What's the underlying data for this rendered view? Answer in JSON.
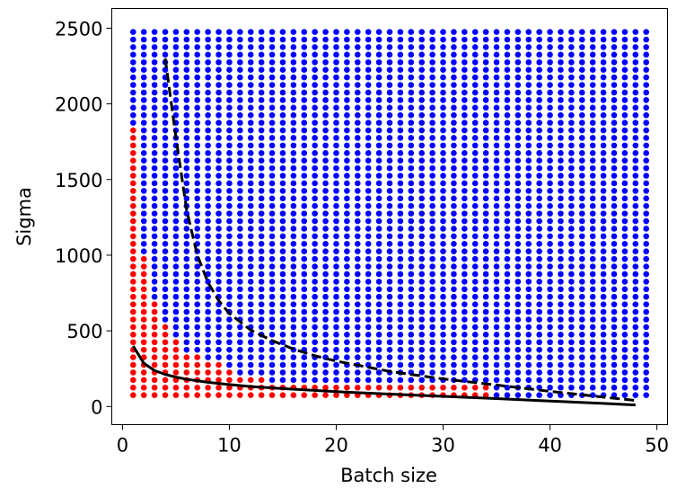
{
  "chart_data": {
    "type": "scatter",
    "title": "",
    "xlabel": "Batch size",
    "ylabel": "Sigma",
    "xlim": [
      -1,
      51
    ],
    "ylim": [
      -120,
      2630
    ],
    "x_ticks": [
      0,
      10,
      20,
      30,
      40,
      50
    ],
    "y_ticks": [
      0,
      500,
      1000,
      1500,
      2000,
      2500
    ],
    "grid": false,
    "legend": "none",
    "grid_points": {
      "x_range": [
        1,
        49
      ],
      "x_step": 1,
      "y_range": [
        75,
        2500
      ],
      "y_step": 50,
      "colors": {
        "feasible": "#ff0000",
        "infeasible": "#0000ff"
      }
    },
    "red_region_max_sigma": [
      {
        "x": 1,
        "sigma": 1825
      },
      {
        "x": 2,
        "sigma": 975
      },
      {
        "x": 3,
        "sigma": 675
      },
      {
        "x": 4,
        "sigma": 525
      },
      {
        "x": 5,
        "sigma": 425
      },
      {
        "x": 6,
        "sigma": 325
      },
      {
        "x": 7,
        "sigma": 325
      },
      {
        "x": 8,
        "sigma": 275
      },
      {
        "x": 9,
        "sigma": 275
      },
      {
        "x": 10,
        "sigma": 225
      },
      {
        "x": 11,
        "sigma": 175
      },
      {
        "x": 12,
        "sigma": 175
      },
      {
        "x": 13,
        "sigma": 175
      },
      {
        "x": 14,
        "sigma": 125
      },
      {
        "x": 15,
        "sigma": 125
      },
      {
        "x": 16,
        "sigma": 125
      },
      {
        "x": 17,
        "sigma": 125
      },
      {
        "x": 18,
        "sigma": 125
      },
      {
        "x": 19,
        "sigma": 125
      },
      {
        "x": 20,
        "sigma": 125
      },
      {
        "x": 21,
        "sigma": 125
      },
      {
        "x": 22,
        "sigma": 125
      },
      {
        "x": 23,
        "sigma": 125
      },
      {
        "x": 24,
        "sigma": 125
      },
      {
        "x": 25,
        "sigma": 125
      },
      {
        "x": 26,
        "sigma": 125
      },
      {
        "x": 27,
        "sigma": 125
      },
      {
        "x": 28,
        "sigma": 125
      },
      {
        "x": 29,
        "sigma": 125
      },
      {
        "x": 30,
        "sigma": 125
      },
      {
        "x": 31,
        "sigma": 125
      },
      {
        "x": 32,
        "sigma": 125
      },
      {
        "x": 33,
        "sigma": 125
      },
      {
        "x": 34,
        "sigma": 125
      }
    ],
    "series": [
      {
        "style": "solid",
        "color": "#000000",
        "x": [
          1,
          2,
          3,
          4,
          5,
          6,
          8,
          10,
          12,
          15,
          20,
          25,
          30,
          35,
          40,
          45,
          48
        ],
        "y": [
          400,
          285,
          238,
          212,
          194,
          180,
          160,
          145,
          132,
          118,
          98,
          82,
          67,
          52,
          36,
          20,
          10
        ]
      },
      {
        "style": "dashed",
        "color": "#000000",
        "x": [
          4,
          5,
          6,
          7,
          8,
          9,
          10,
          12,
          14,
          16,
          18,
          20,
          25,
          30,
          35,
          40,
          45,
          48
        ],
        "y": [
          2300,
          1780,
          1300,
          1000,
          820,
          700,
          615,
          505,
          435,
          380,
          335,
          300,
          232,
          182,
          142,
          100,
          62,
          40
        ]
      }
    ]
  }
}
